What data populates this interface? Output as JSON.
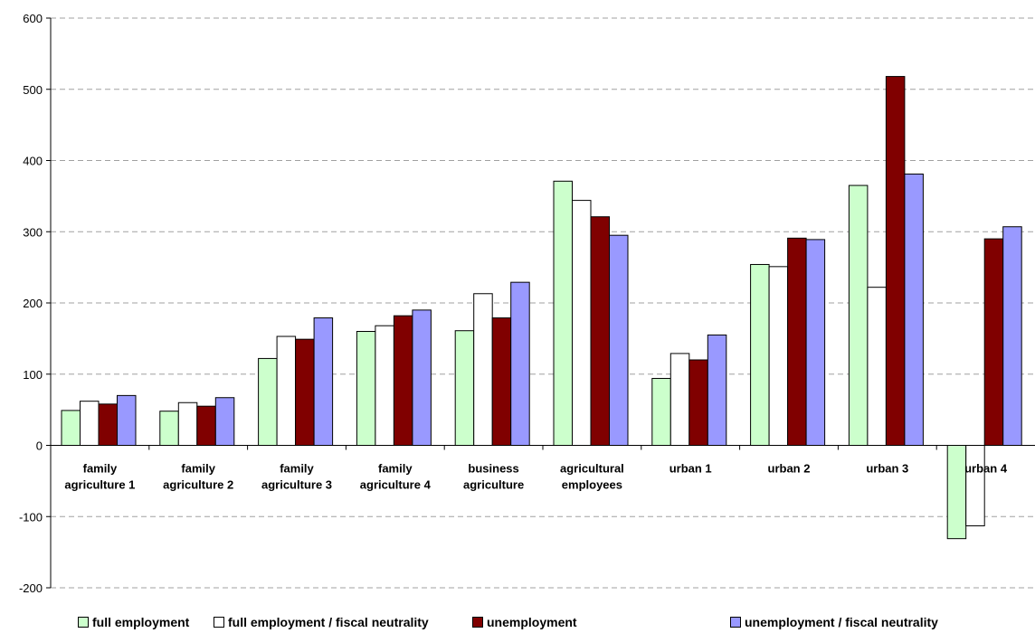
{
  "chart_data": {
    "type": "bar",
    "title": "",
    "xlabel": "",
    "ylabel": "",
    "ylim": [
      -200,
      600
    ],
    "yticks": [
      -200,
      -100,
      0,
      100,
      200,
      300,
      400,
      500,
      600
    ],
    "grid": true,
    "legend_position": "bottom",
    "categories": [
      [
        "family",
        "agriculture 1"
      ],
      [
        "family",
        "agriculture 2"
      ],
      [
        "family",
        "agriculture 3"
      ],
      [
        "family",
        "agriculture 4"
      ],
      [
        "business",
        "agriculture"
      ],
      [
        "agricultural",
        "employees"
      ],
      [
        "urban 1"
      ],
      [
        "urban 2"
      ],
      [
        "urban 3"
      ],
      [
        "urban 4"
      ]
    ],
    "series": [
      {
        "name": "full employment",
        "color": "#ccffcc",
        "values": [
          49,
          48,
          122,
          160,
          161,
          371,
          94,
          254,
          365,
          -131
        ]
      },
      {
        "name": "full employment / fiscal neutrality",
        "color": "#ffffff",
        "values": [
          62,
          60,
          153,
          168,
          213,
          344,
          129,
          251,
          222,
          -113
        ]
      },
      {
        "name": "unemployment",
        "color": "#800000",
        "values": [
          58,
          55,
          149,
          182,
          179,
          321,
          120,
          291,
          518,
          290
        ]
      },
      {
        "name": "unemployment / fiscal neutrality",
        "color": "#9999ff",
        "values": [
          70,
          67,
          179,
          190,
          229,
          295,
          155,
          289,
          381,
          307
        ]
      }
    ]
  }
}
